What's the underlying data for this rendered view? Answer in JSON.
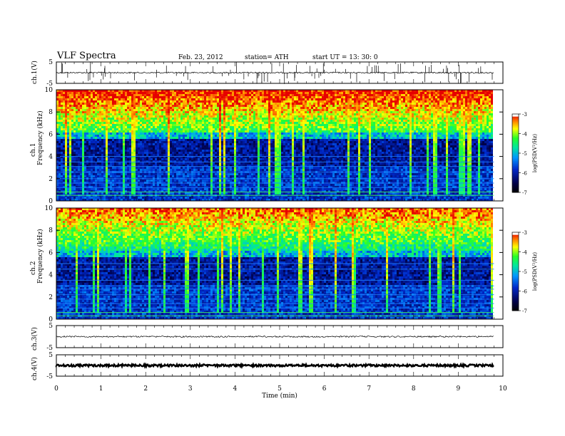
{
  "header": {
    "title": "VLF  Spectra",
    "date": "Feb. 23, 2012",
    "station": "station= ATH",
    "start": "start  UT  =    13: 30: 0"
  },
  "panels": {
    "ch1_label": "ch.1(V)",
    "ch1_freq_label": "ch.1",
    "ch2_freq_label": "ch.2",
    "freq_unit_label": "Frequency  (kHz)",
    "ch3_label": "ch.3(V)",
    "ch4_label": "ch.4(V)"
  },
  "colorbar": {
    "label": "log(PSD(V²/Hz)",
    "ticks": [
      "-3",
      "-4",
      "-5",
      "-6",
      "-7"
    ],
    "colors": [
      "#ffffff",
      "#ff0000",
      "#ffff00",
      "#00ff00",
      "#00e0ff",
      "#0040ff",
      "#000040",
      "#000000"
    ]
  },
  "chart_data": [
    {
      "type": "line",
      "name": "ch.1 waveform",
      "ylabel": "ch.1(V)",
      "ylim": [
        -5,
        5
      ],
      "yticks": [
        "5",
        "-5"
      ],
      "xlim": [
        0,
        10
      ],
      "baseline": 0
    },
    {
      "type": "heatmap",
      "name": "ch.1 spectrogram",
      "ylabel": "Frequency  (kHz)",
      "ylim": [
        0,
        10
      ],
      "yticks": [
        "10",
        "8",
        "6",
        "4",
        "2",
        "0"
      ],
      "xlim": [
        0,
        10
      ],
      "zlim": [
        -7,
        -3
      ],
      "data_end_min": 9.8
    },
    {
      "type": "heatmap",
      "name": "ch.2 spectrogram",
      "ylabel": "Frequency  (kHz)",
      "ylim": [
        0,
        10
      ],
      "yticks": [
        "10",
        "8",
        "6",
        "4",
        "2",
        "0"
      ],
      "xlim": [
        0,
        10
      ],
      "zlim": [
        -7,
        -3
      ],
      "data_end_min": 9.8
    },
    {
      "type": "line",
      "name": "ch.3 waveform",
      "ylabel": "ch.3(V)",
      "ylim": [
        -5,
        5
      ],
      "yticks": [
        "5",
        "-5"
      ],
      "xlim": [
        0,
        10
      ],
      "baseline": 0
    },
    {
      "type": "line",
      "name": "ch.4 waveform",
      "ylabel": "ch.4(V)",
      "ylim": [
        -5,
        5
      ],
      "yticks": [
        "5",
        "-5"
      ],
      "xlim": [
        0,
        10
      ],
      "xlabel": "Time  (min)",
      "xticks": [
        "0",
        "1",
        "2",
        "3",
        "4",
        "5",
        "6",
        "7",
        "8",
        "9",
        "10"
      ],
      "baseline": 0
    }
  ]
}
